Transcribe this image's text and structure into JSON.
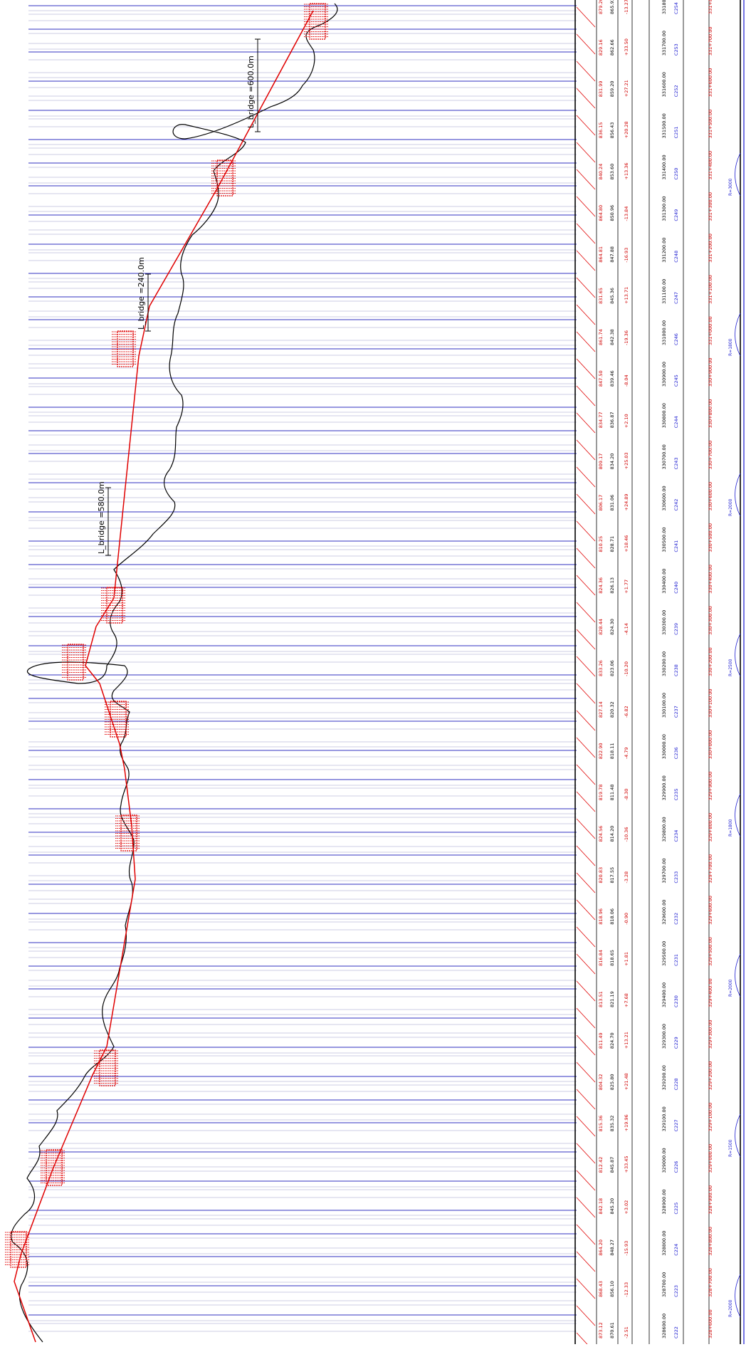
{
  "bridges": [
    {
      "label": "L_bridge =600.0m"
    },
    {
      "label": "L_bridge =240.0m"
    },
    {
      "label": "L_bridge =580.0m"
    }
  ],
  "colors": {
    "ground": "#000000",
    "grade": "#e00000",
    "station": "#3030c0",
    "elev_red": "#d00000",
    "chain_blue": "#1a1ad0",
    "table_line": "#000000"
  },
  "table": {
    "col_ground_elev": [
      "873.12",
      "868.43",
      "864.20",
      "842.18",
      "812.42",
      "815.36",
      "804.32",
      "811.49",
      "813.51",
      "816.84",
      "818.96",
      "820.83",
      "824.56",
      "819.78",
      "822.90",
      "827.14",
      "833.26",
      "828.44",
      "824.36",
      "810.25",
      "806.17",
      "809.17",
      "834.77",
      "847.50",
      "861.74",
      "831.65",
      "864.81",
      "864.80",
      "840.24",
      "836.15",
      "831.99",
      "829.16",
      "879.20"
    ],
    "col_design_elev": [
      "870.61",
      "856.10",
      "848.27",
      "845.20",
      "845.87",
      "835.32",
      "825.80",
      "824.70",
      "821.19",
      "818.65",
      "818.06",
      "817.55",
      "814.20",
      "811.48",
      "818.11",
      "820.32",
      "823.06",
      "824.30",
      "826.13",
      "828.71",
      "831.06",
      "834.20",
      "836.87",
      "839.46",
      "842.38",
      "845.36",
      "847.88",
      "850.96",
      "853.60",
      "856.43",
      "859.20",
      "862.66",
      "865.93"
    ],
    "col_cut_fill": [
      "-2.51",
      "-12.33",
      "-15.93",
      "+3.02",
      "+33.45",
      "+19.96",
      "+21.48",
      "+13.21",
      "+7.68",
      "+1.81",
      "-0.90",
      "-3.28",
      "-10.36",
      "-8.30",
      "-4.79",
      "-6.82",
      "-10.20",
      "-4.14",
      "+1.77",
      "+18.46",
      "+24.89",
      "+25.03",
      "+2.10",
      "-8.04",
      "-19.36",
      "+13.71",
      "-16.93",
      "-13.84",
      "+13.36",
      "+20.28",
      "+27.21",
      "+33.50",
      "-13.27"
    ],
    "col_chainage": [
      "328600.00",
      "328700.00",
      "328800.00",
      "328900.00",
      "329000.00",
      "329100.00",
      "329200.00",
      "329300.00",
      "329400.00",
      "329500.00",
      "329600.00",
      "329700.00",
      "329800.00",
      "329900.00",
      "330000.00",
      "330100.00",
      "330200.00",
      "330300.00",
      "330400.00",
      "330500.00",
      "330600.00",
      "330700.00",
      "330800.00",
      "330900.00",
      "331000.00",
      "331100.00",
      "331200.00",
      "331300.00",
      "331400.00",
      "331500.00",
      "331600.00",
      "331700.00",
      "331800.00"
    ],
    "col_station": [
      "C222",
      "C223",
      "C224",
      "C225",
      "C226",
      "C227",
      "C228",
      "C229",
      "C230",
      "C231",
      "C232",
      "C233",
      "C234",
      "C235",
      "C236",
      "C237",
      "C238",
      "C239",
      "C240",
      "C241",
      "C242",
      "C243",
      "C244",
      "C245",
      "C246",
      "C247",
      "C248",
      "C249",
      "C250",
      "C251",
      "C252",
      "C253",
      "C254"
    ],
    "col_km": [
      "328+600.00",
      "328+700.00",
      "328+800.00",
      "328+900.00",
      "329+000.00",
      "329+100.00",
      "329+200.00",
      "329+300.00",
      "329+400.00",
      "329+500.00",
      "329+600.00",
      "329+700.00",
      "329+800.00",
      "329+900.00",
      "330+000.00",
      "330+100.00",
      "330+200.00",
      "330+300.00",
      "330+400.00",
      "330+500.00",
      "330+600.00",
      "330+700.00",
      "330+800.00",
      "330+900.00",
      "331+000.00",
      "331+100.00",
      "331+200.00",
      "331+300.00",
      "331+400.00",
      "331+500.00",
      "331+600.00",
      "331+700.00",
      "331+800.00"
    ],
    "curve_notes": [
      "R=2000",
      "R=1500",
      "R=2000",
      "R=1800",
      "R=2500",
      "R=2000",
      "R=1800",
      "R=3000"
    ]
  }
}
